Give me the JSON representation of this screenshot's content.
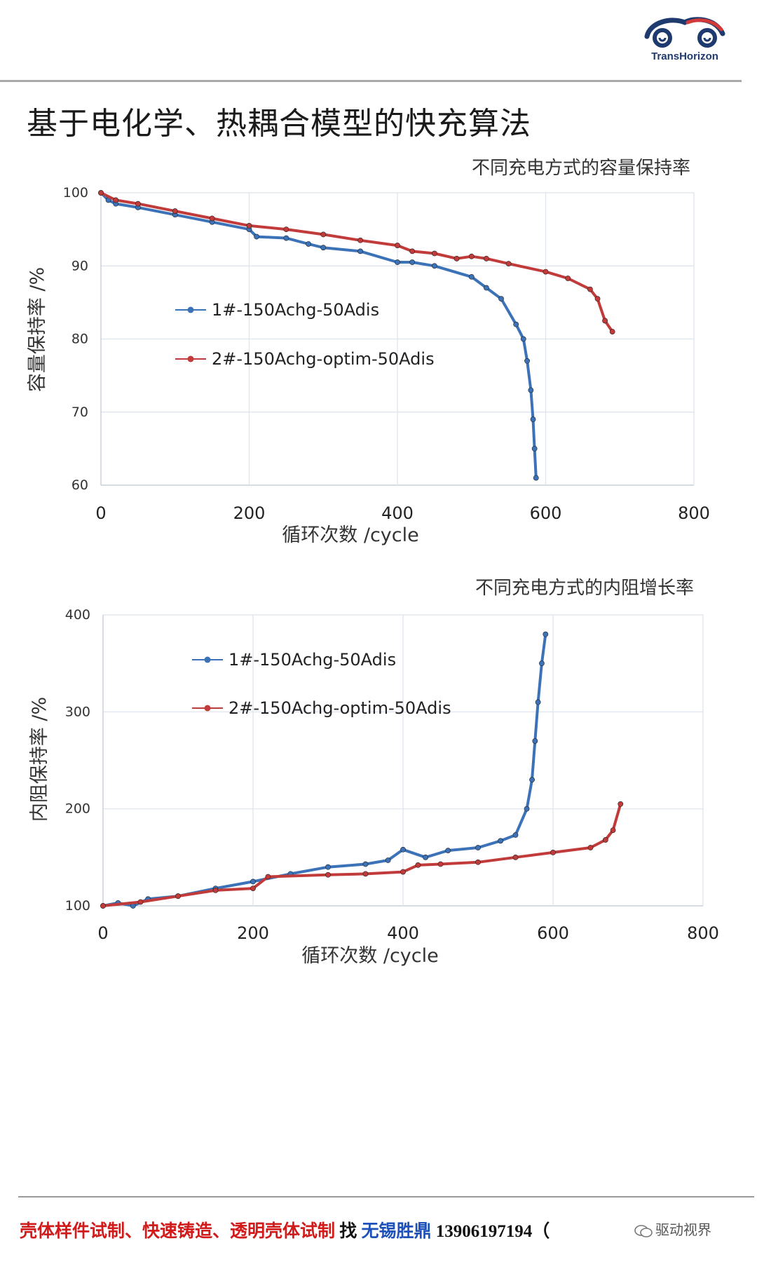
{
  "header": {
    "logo_text": "TransHorizon",
    "title": "基于电化学、热耦合模型的快充算法"
  },
  "colors": {
    "series1": "#3c72b8",
    "series2": "#c23b3b",
    "grid": "#dde3ec",
    "axis": "#bfc6d1"
  },
  "chart_data": [
    {
      "type": "line",
      "title": "不同充电方式的容量保持率",
      "xlabel": "循环次数 /cycle",
      "ylabel": "容量保持率 /%",
      "xlim": [
        0,
        800
      ],
      "ylim": [
        60,
        100
      ],
      "xticks": [
        0,
        200,
        400,
        600,
        800
      ],
      "yticks": [
        60,
        70,
        80,
        90,
        100
      ],
      "grid": true,
      "legend": "left-middle",
      "series": [
        {
          "name": "1#-150Achg-50Adis",
          "color": "#3c72b8",
          "points": [
            [
              0,
              100
            ],
            [
              10,
              99
            ],
            [
              20,
              98.5
            ],
            [
              50,
              98
            ],
            [
              100,
              97
            ],
            [
              150,
              96
            ],
            [
              200,
              95
            ],
            [
              210,
              94
            ],
            [
              250,
              93.8
            ],
            [
              280,
              93
            ],
            [
              300,
              92.5
            ],
            [
              350,
              92
            ],
            [
              400,
              90.5
            ],
            [
              420,
              90.5
            ],
            [
              450,
              90
            ],
            [
              500,
              88.5
            ],
            [
              520,
              87
            ],
            [
              540,
              85.5
            ],
            [
              560,
              82
            ],
            [
              570,
              80
            ],
            [
              575,
              77
            ],
            [
              580,
              73
            ],
            [
              583,
              69
            ],
            [
              585,
              65
            ],
            [
              587,
              61
            ]
          ]
        },
        {
          "name": "2#-150Achg-optim-50Adis",
          "color": "#c23b3b",
          "points": [
            [
              0,
              100
            ],
            [
              20,
              99
            ],
            [
              50,
              98.5
            ],
            [
              100,
              97.5
            ],
            [
              150,
              96.5
            ],
            [
              200,
              95.5
            ],
            [
              250,
              95
            ],
            [
              300,
              94.3
            ],
            [
              350,
              93.5
            ],
            [
              400,
              92.8
            ],
            [
              420,
              92
            ],
            [
              450,
              91.7
            ],
            [
              480,
              91
            ],
            [
              500,
              91.3
            ],
            [
              520,
              91
            ],
            [
              550,
              90.3
            ],
            [
              600,
              89.2
            ],
            [
              630,
              88.3
            ],
            [
              660,
              86.8
            ],
            [
              670,
              85.5
            ],
            [
              680,
              82.5
            ],
            [
              690,
              81
            ]
          ]
        }
      ]
    },
    {
      "type": "line",
      "title": "不同充电方式的内阻增长率",
      "xlabel": "循环次数 /cycle",
      "ylabel": "内阻保持率 /%",
      "xlim": [
        0,
        800
      ],
      "ylim": [
        100,
        400
      ],
      "xticks": [
        0,
        200,
        400,
        600,
        800
      ],
      "yticks": [
        100,
        200,
        300,
        400
      ],
      "grid": true,
      "legend": "left-top",
      "series": [
        {
          "name": "1#-150Achg-50Adis",
          "color": "#3c72b8",
          "points": [
            [
              0,
              100
            ],
            [
              20,
              103
            ],
            [
              40,
              100
            ],
            [
              60,
              107
            ],
            [
              100,
              110
            ],
            [
              150,
              118
            ],
            [
              200,
              125
            ],
            [
              250,
              133
            ],
            [
              300,
              140
            ],
            [
              350,
              143
            ],
            [
              380,
              147
            ],
            [
              400,
              158
            ],
            [
              430,
              150
            ],
            [
              460,
              157
            ],
            [
              500,
              160
            ],
            [
              530,
              167
            ],
            [
              550,
              173
            ],
            [
              565,
              200
            ],
            [
              572,
              230
            ],
            [
              576,
              270
            ],
            [
              580,
              310
            ],
            [
              585,
              350
            ],
            [
              590,
              380
            ]
          ]
        },
        {
          "name": "2#-150Achg-optim-50Adis",
          "color": "#c23b3b",
          "points": [
            [
              0,
              100
            ],
            [
              50,
              104
            ],
            [
              100,
              110
            ],
            [
              150,
              116
            ],
            [
              200,
              118
            ],
            [
              220,
              130
            ],
            [
              300,
              132
            ],
            [
              350,
              133
            ],
            [
              400,
              135
            ],
            [
              420,
              142
            ],
            [
              450,
              143
            ],
            [
              500,
              145
            ],
            [
              550,
              150
            ],
            [
              600,
              155
            ],
            [
              650,
              160
            ],
            [
              670,
              168
            ],
            [
              680,
              178
            ],
            [
              690,
              205
            ]
          ]
        }
      ]
    }
  ],
  "footer": {
    "part1": "壳体样件试制、快速铸造、透明壳体试制",
    "part2": "找",
    "part3": "无锡胜鼎",
    "part4": "13906197194（",
    "wechat": "驱动视界"
  }
}
